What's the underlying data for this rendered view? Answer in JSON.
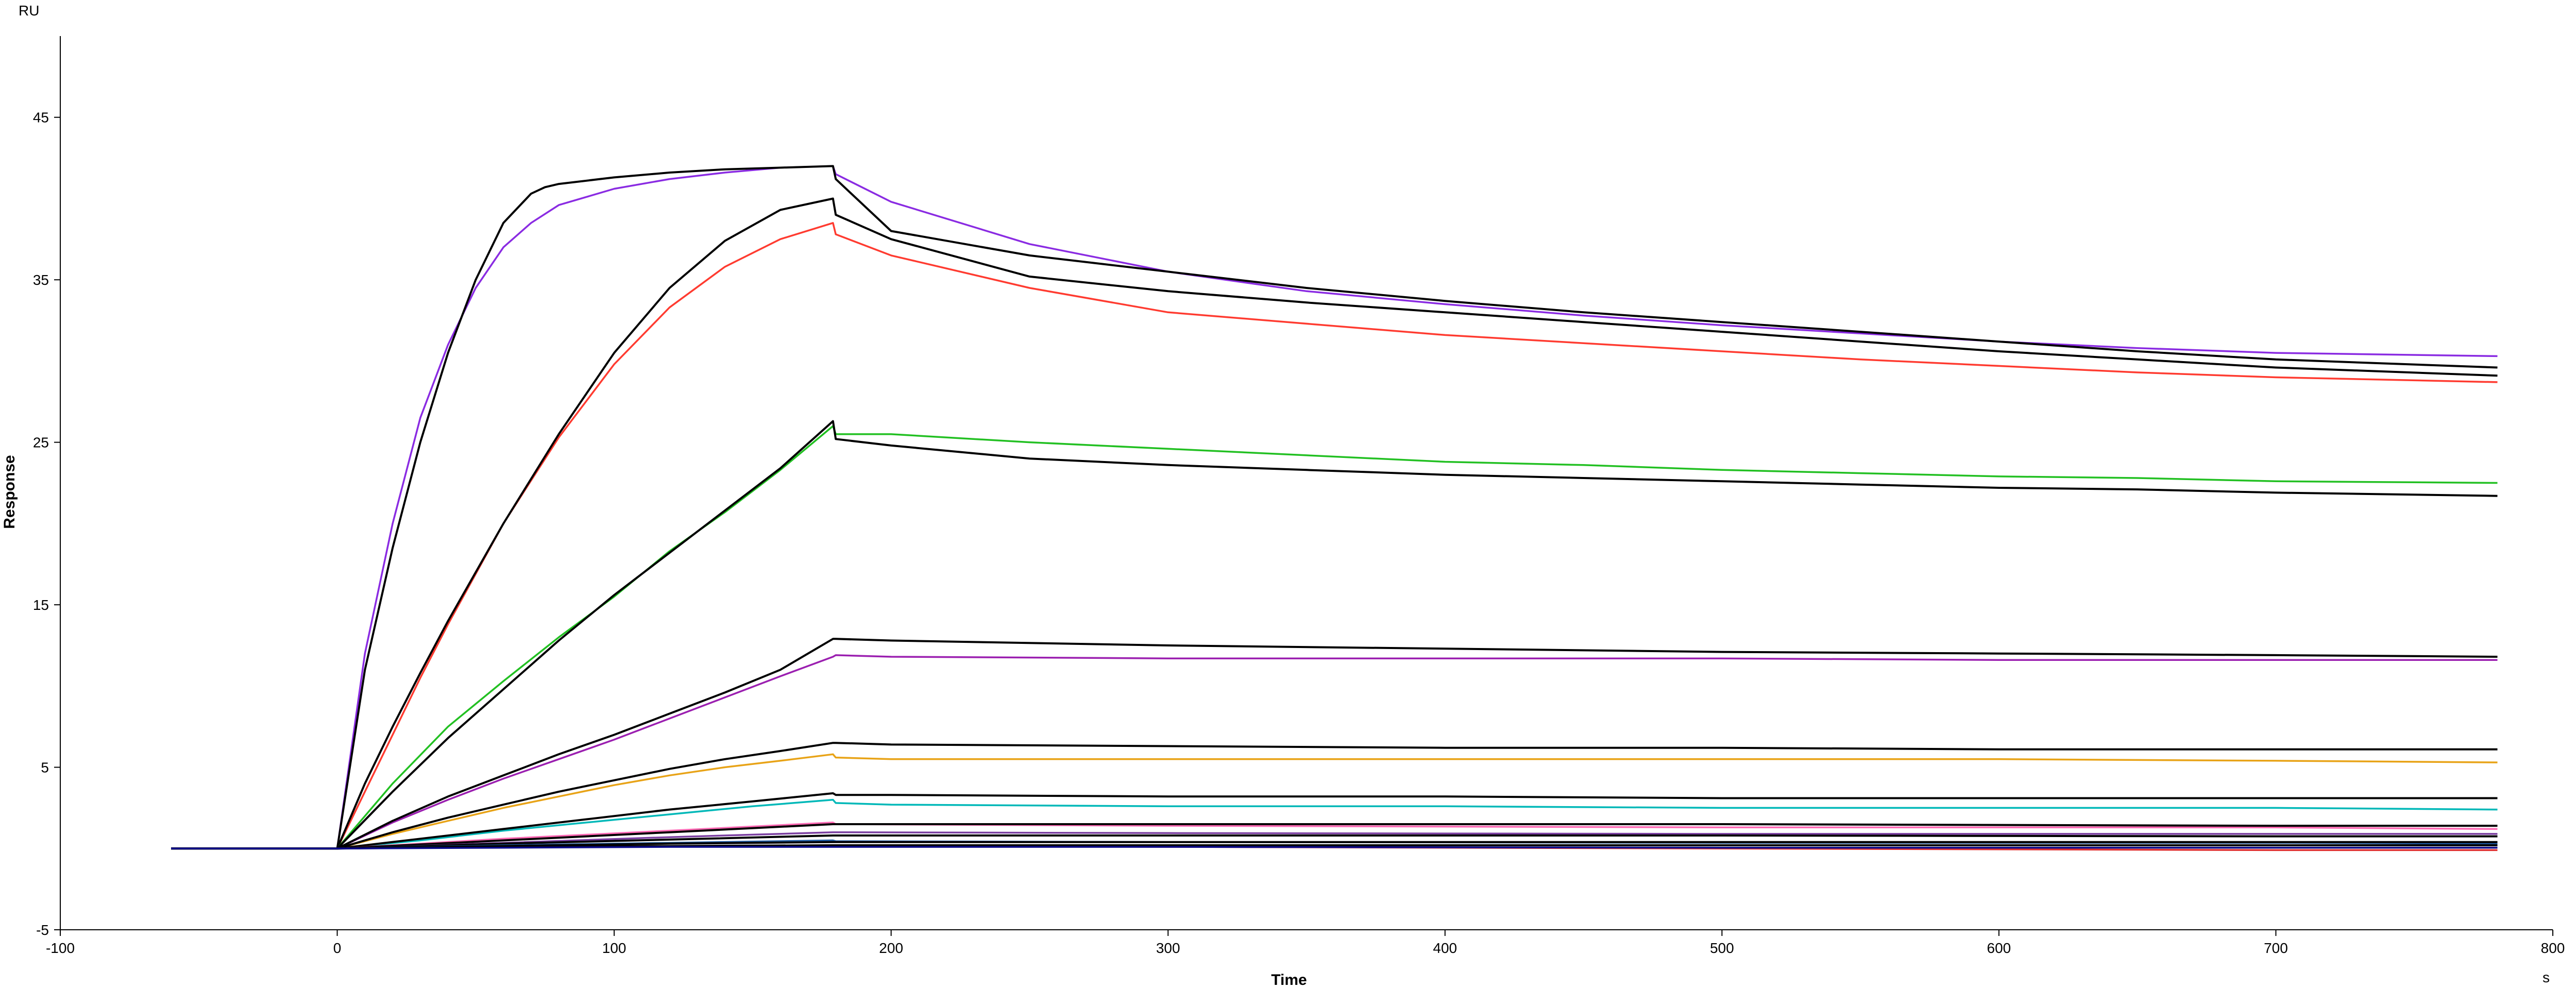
{
  "chart_data": {
    "type": "line",
    "xlabel": "Time",
    "ylabel": "Response",
    "x_unit": "s",
    "y_unit": "RU",
    "xlim": [
      -100,
      800
    ],
    "ylim": [
      -5,
      50
    ],
    "x_ticks": [
      -100,
      0,
      100,
      200,
      300,
      400,
      500,
      600,
      700,
      800
    ],
    "y_ticks": [
      -5,
      5,
      15,
      25,
      35,
      45
    ],
    "grid": false,
    "legend": "none",
    "series": [
      {
        "color": "#8a2be2",
        "x": [
          -60,
          0,
          10,
          20,
          30,
          40,
          50,
          60,
          70,
          80,
          100,
          120,
          140,
          160,
          179,
          180,
          200,
          250,
          300,
          350,
          400,
          450,
          500,
          550,
          600,
          650,
          700,
          780
        ],
        "y": [
          0,
          0,
          12,
          20,
          26.5,
          31,
          34.5,
          37,
          38.5,
          39.6,
          40.6,
          41.2,
          41.6,
          41.9,
          42,
          41.5,
          39.8,
          37.2,
          35.5,
          34.3,
          33.5,
          32.8,
          32.2,
          31.7,
          31.2,
          30.8,
          30.5,
          30.3
        ]
      },
      {
        "color": "#ff3b30",
        "x": [
          -60,
          0,
          10,
          20,
          30,
          40,
          60,
          80,
          100,
          120,
          140,
          160,
          179,
          180,
          200,
          250,
          300,
          350,
          400,
          450,
          500,
          550,
          600,
          650,
          700,
          780
        ],
        "y": [
          0,
          0,
          3.5,
          7,
          10.5,
          13.8,
          20,
          25.3,
          29.8,
          33.3,
          35.8,
          37.5,
          38.5,
          37.8,
          36.5,
          34.5,
          33,
          32.3,
          31.6,
          31.1,
          30.6,
          30.1,
          29.7,
          29.3,
          29,
          28.7
        ]
      },
      {
        "color": "#000000",
        "x": [
          -60,
          0,
          10,
          20,
          30,
          40,
          50,
          60,
          70,
          75,
          80,
          100,
          120,
          140,
          160,
          179,
          180,
          200,
          250,
          300,
          350,
          400,
          450,
          500,
          550,
          600,
          650,
          700,
          780
        ],
        "y": [
          0,
          0,
          11,
          18.5,
          25,
          30.5,
          35,
          38.5,
          40.3,
          40.7,
          40.9,
          41.3,
          41.6,
          41.8,
          41.9,
          42,
          41.2,
          38,
          36.5,
          35.5,
          34.5,
          33.7,
          33,
          32.4,
          31.8,
          31.2,
          30.6,
          30.1,
          29.6
        ]
      },
      {
        "color": "#000000",
        "x": [
          -60,
          0,
          10,
          20,
          30,
          40,
          60,
          80,
          100,
          120,
          140,
          160,
          179,
          180,
          200,
          250,
          300,
          350,
          400,
          450,
          500,
          550,
          600,
          650,
          700,
          780
        ],
        "y": [
          0,
          0,
          4,
          7.5,
          10.8,
          14,
          20,
          25.5,
          30.5,
          34.5,
          37.4,
          39.3,
          40,
          39,
          37.5,
          35.2,
          34.3,
          33.6,
          33,
          32.4,
          31.8,
          31.2,
          30.6,
          30.1,
          29.6,
          29.1
        ]
      },
      {
        "color": "#22c022",
        "x": [
          -60,
          0,
          20,
          40,
          60,
          80,
          100,
          120,
          140,
          160,
          179,
          180,
          200,
          250,
          300,
          350,
          400,
          450,
          500,
          550,
          600,
          650,
          700,
          780
        ],
        "y": [
          0,
          0,
          4,
          7.5,
          10.3,
          13,
          15.5,
          18.3,
          20.7,
          23.3,
          26,
          25.5,
          25.5,
          25,
          24.6,
          24.2,
          23.8,
          23.6,
          23.3,
          23.1,
          22.9,
          22.8,
          22.6,
          22.5
        ]
      },
      {
        "color": "#000000",
        "x": [
          -60,
          0,
          20,
          40,
          60,
          80,
          100,
          120,
          140,
          160,
          179,
          180,
          200,
          250,
          300,
          350,
          400,
          450,
          500,
          550,
          600,
          650,
          700,
          780
        ],
        "y": [
          0,
          0,
          3.5,
          6.8,
          9.8,
          12.8,
          15.6,
          18.2,
          20.8,
          23.4,
          26.3,
          25.2,
          24.8,
          24,
          23.6,
          23.3,
          23,
          22.8,
          22.6,
          22.4,
          22.2,
          22.1,
          21.9,
          21.7
        ]
      },
      {
        "color": "#9b1fb0",
        "x": [
          -60,
          0,
          20,
          40,
          60,
          80,
          100,
          120,
          140,
          160,
          179,
          180,
          200,
          300,
          400,
          500,
          600,
          700,
          780
        ],
        "y": [
          0,
          0,
          1.6,
          3,
          4.3,
          5.5,
          6.7,
          8,
          9.3,
          10.6,
          11.8,
          11.9,
          11.8,
          11.7,
          11.7,
          11.7,
          11.6,
          11.6,
          11.6
        ]
      },
      {
        "color": "#000000",
        "x": [
          -60,
          0,
          20,
          40,
          60,
          80,
          100,
          120,
          140,
          160,
          179,
          180,
          200,
          300,
          400,
          500,
          600,
          700,
          780
        ],
        "y": [
          0,
          0,
          1.7,
          3.2,
          4.5,
          5.8,
          7,
          8.3,
          9.6,
          11,
          12.9,
          12.9,
          12.8,
          12.5,
          12.3,
          12.1,
          12,
          11.9,
          11.8
        ]
      },
      {
        "color": "#e8a317",
        "x": [
          -60,
          0,
          20,
          40,
          60,
          80,
          100,
          120,
          140,
          160,
          179,
          180,
          200,
          300,
          400,
          500,
          600,
          700,
          780
        ],
        "y": [
          0,
          0,
          0.9,
          1.7,
          2.5,
          3.2,
          3.9,
          4.5,
          5,
          5.4,
          5.8,
          5.6,
          5.5,
          5.5,
          5.5,
          5.5,
          5.5,
          5.4,
          5.3
        ]
      },
      {
        "color": "#000000",
        "x": [
          -60,
          0,
          20,
          40,
          60,
          80,
          100,
          120,
          140,
          160,
          179,
          180,
          200,
          300,
          400,
          500,
          600,
          700,
          780
        ],
        "y": [
          0,
          0,
          1,
          1.9,
          2.7,
          3.5,
          4.2,
          4.9,
          5.5,
          6,
          6.5,
          6.5,
          6.4,
          6.3,
          6.2,
          6.2,
          6.1,
          6.1,
          6.1
        ]
      },
      {
        "color": "#00b8b8",
        "x": [
          -60,
          0,
          30,
          60,
          90,
          120,
          150,
          179,
          180,
          200,
          300,
          400,
          500,
          600,
          700,
          780
        ],
        "y": [
          0,
          0,
          0.5,
          1.1,
          1.6,
          2.1,
          2.6,
          3,
          2.8,
          2.7,
          2.6,
          2.6,
          2.5,
          2.5,
          2.5,
          2.4
        ]
      },
      {
        "color": "#000000",
        "x": [
          -60,
          0,
          30,
          60,
          90,
          120,
          150,
          179,
          180,
          200,
          300,
          400,
          500,
          600,
          700,
          780
        ],
        "y": [
          0,
          0,
          0.6,
          1.2,
          1.8,
          2.4,
          2.9,
          3.4,
          3.3,
          3.3,
          3.2,
          3.2,
          3.1,
          3.1,
          3.1,
          3.1
        ]
      },
      {
        "color": "#ff69b4",
        "x": [
          -60,
          0,
          60,
          120,
          179,
          180,
          300,
          500,
          700,
          780
        ],
        "y": [
          0,
          0,
          0.6,
          1.1,
          1.6,
          1.5,
          1.4,
          1.3,
          1.3,
          1.2
        ]
      },
      {
        "color": "#000000",
        "x": [
          -60,
          0,
          60,
          120,
          179,
          180,
          300,
          500,
          700,
          780
        ],
        "y": [
          0,
          0,
          0.5,
          1,
          1.5,
          1.5,
          1.5,
          1.5,
          1.4,
          1.4
        ]
      },
      {
        "color": "#7a3ea0",
        "x": [
          -60,
          0,
          60,
          120,
          179,
          180,
          300,
          500,
          700,
          780
        ],
        "y": [
          0,
          0,
          0.35,
          0.7,
          1,
          1,
          0.95,
          0.9,
          0.9,
          0.9
        ]
      },
      {
        "color": "#000000",
        "x": [
          -60,
          0,
          60,
          120,
          179,
          180,
          300,
          500,
          700,
          780
        ],
        "y": [
          0,
          0,
          0.3,
          0.55,
          0.8,
          0.8,
          0.8,
          0.8,
          0.75,
          0.75
        ]
      },
      {
        "color": "#1e5aa0",
        "x": [
          -60,
          0,
          60,
          120,
          179,
          180,
          300,
          500,
          700,
          780
        ],
        "y": [
          0,
          0,
          0.2,
          0.35,
          0.5,
          0.45,
          0.4,
          0.35,
          0.35,
          0.3
        ]
      },
      {
        "color": "#000000",
        "x": [
          -60,
          0,
          60,
          120,
          179,
          180,
          300,
          500,
          700,
          780
        ],
        "y": [
          0,
          0,
          0.15,
          0.3,
          0.4,
          0.4,
          0.4,
          0.4,
          0.4,
          0.4
        ]
      },
      {
        "color": "#e03030",
        "x": [
          -60,
          0,
          60,
          120,
          179,
          180,
          300,
          500,
          700,
          780
        ],
        "y": [
          0,
          0,
          0.1,
          0.15,
          0.2,
          0.2,
          0.1,
          0,
          -0.1,
          -0.1
        ]
      },
      {
        "color": "#000000",
        "x": [
          -60,
          0,
          60,
          120,
          179,
          180,
          300,
          500,
          700,
          780
        ],
        "y": [
          0,
          0,
          0.1,
          0.15,
          0.2,
          0.2,
          0.2,
          0.2,
          0.2,
          0.2
        ]
      },
      {
        "color": "#0a0a8a",
        "x": [
          -60,
          0,
          60,
          120,
          179,
          180,
          300,
          500,
          700,
          780
        ],
        "y": [
          0,
          0,
          0.05,
          0.1,
          0.1,
          0.1,
          0.1,
          0.05,
          0.05,
          0.05
        ]
      }
    ]
  }
}
